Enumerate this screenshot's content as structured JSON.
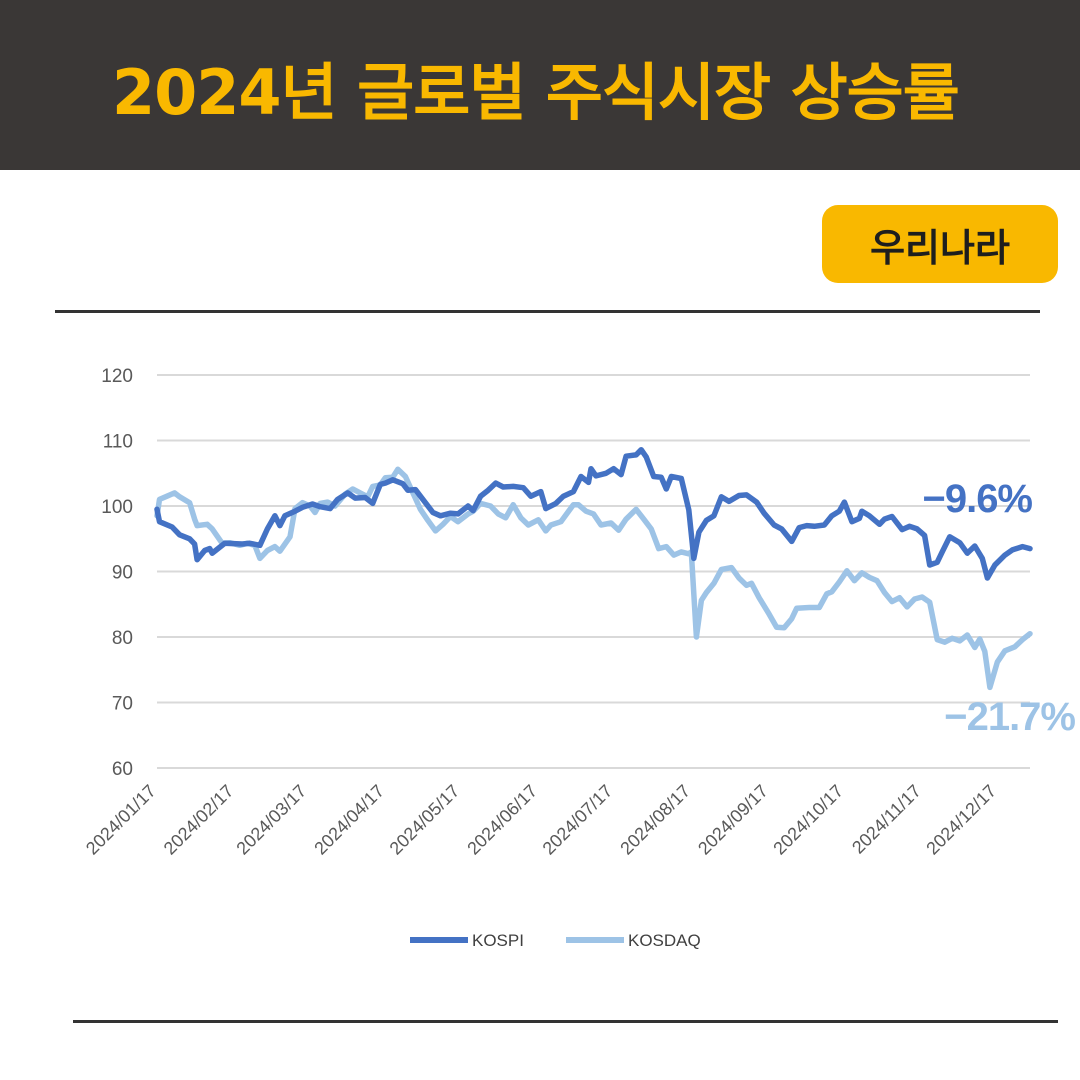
{
  "header": {
    "title": "2024년 글로벌 주식시장 상승률"
  },
  "badge": {
    "label": "우리나라"
  },
  "colors": {
    "header_bg": "#3a3736",
    "accent": "#f9b800",
    "kospi": "#4472c4",
    "kosdaq": "#9dc3e6"
  },
  "chart_data": {
    "type": "line",
    "title": "",
    "xlabel": "",
    "ylabel": "",
    "ylim": [
      60,
      120
    ],
    "yticks": [
      60,
      70,
      80,
      90,
      100,
      110,
      120
    ],
    "x_tick_labels": [
      "2024/01/17",
      "2024/02/17",
      "2024/03/17",
      "2024/04/17",
      "2024/05/17",
      "2024/06/17",
      "2024/07/17",
      "2024/08/17",
      "2024/09/17",
      "2024/10/17",
      "2024/11/17",
      "2024/12/17"
    ],
    "x_range": [
      "2024/01/17",
      "2024/12/30"
    ],
    "grid": true,
    "legend_position": "bottom",
    "series": [
      {
        "name": "KOSPI",
        "color": "#4472c4",
        "end_label": "−9.6%",
        "points": [
          [
            "2024/01/17",
            99.5
          ],
          [
            "2024/01/18",
            97.6
          ],
          [
            "2024/01/23",
            96.8
          ],
          [
            "2024/01/26",
            95.6
          ],
          [
            "2024/01/30",
            95.0
          ],
          [
            "2024/02/01",
            94.2
          ],
          [
            "2024/02/02",
            91.8
          ],
          [
            "2024/02/05",
            93.2
          ],
          [
            "2024/02/07",
            93.5
          ],
          [
            "2024/02/08",
            92.8
          ],
          [
            "2024/02/13",
            94.3
          ],
          [
            "2024/02/20",
            94.2
          ],
          [
            "2024/02/23",
            94.3
          ],
          [
            "2024/02/27",
            94.0
          ],
          [
            "2024/03/01",
            96.5
          ],
          [
            "2024/03/04",
            98.5
          ],
          [
            "2024/03/06",
            97.0
          ],
          [
            "2024/03/08",
            98.5
          ],
          [
            "2024/03/12",
            99.2
          ],
          [
            "2024/03/15",
            99.8
          ],
          [
            "2024/03/19",
            100.3
          ],
          [
            "2024/03/22",
            99.9
          ],
          [
            "2024/03/26",
            99.6
          ],
          [
            "2024/03/29",
            101.0
          ],
          [
            "2024/04/02",
            102.0
          ],
          [
            "2024/04/05",
            101.2
          ],
          [
            "2024/04/09",
            101.3
          ],
          [
            "2024/04/12",
            100.4
          ],
          [
            "2024/04/15",
            103.3
          ],
          [
            "2024/04/17",
            103.5
          ],
          [
            "2024/04/20",
            104.0
          ],
          [
            "2024/04/24",
            103.4
          ],
          [
            "2024/04/26",
            102.4
          ],
          [
            "2024/04/29",
            102.5
          ],
          [
            "2024/05/02",
            101.0
          ],
          [
            "2024/05/06",
            99.0
          ],
          [
            "2024/05/09",
            98.5
          ],
          [
            "2024/05/13",
            98.9
          ],
          [
            "2024/05/16",
            98.8
          ],
          [
            "2024/05/20",
            100.0
          ],
          [
            "2024/05/22",
            99.3
          ],
          [
            "2024/05/25",
            101.5
          ],
          [
            "2024/05/28",
            102.4
          ],
          [
            "2024/05/31",
            103.5
          ],
          [
            "2024/06/03",
            102.9
          ],
          [
            "2024/06/07",
            103.0
          ],
          [
            "2024/06/11",
            102.8
          ],
          [
            "2024/06/14",
            101.5
          ],
          [
            "2024/06/18",
            102.2
          ],
          [
            "2024/06/20",
            99.6
          ],
          [
            "2024/06/24",
            100.4
          ],
          [
            "2024/06/27",
            101.5
          ],
          [
            "2024/07/01",
            102.2
          ],
          [
            "2024/07/04",
            104.5
          ],
          [
            "2024/07/07",
            103.6
          ],
          [
            "2024/07/08",
            105.7
          ],
          [
            "2024/07/10",
            104.6
          ],
          [
            "2024/07/14",
            105.0
          ],
          [
            "2024/07/17",
            105.7
          ],
          [
            "2024/07/20",
            104.8
          ],
          [
            "2024/07/22",
            107.6
          ],
          [
            "2024/07/26",
            107.8
          ],
          [
            "2024/07/28",
            108.6
          ],
          [
            "2024/07/30",
            107.5
          ],
          [
            "2024/08/02",
            104.5
          ],
          [
            "2024/08/05",
            104.4
          ],
          [
            "2024/08/07",
            102.6
          ],
          [
            "2024/08/09",
            104.5
          ],
          [
            "2024/08/13",
            104.2
          ],
          [
            "2024/08/16",
            99.4
          ],
          [
            "2024/08/18",
            92.0
          ],
          [
            "2024/08/20",
            96.0
          ],
          [
            "2024/08/23",
            97.8
          ],
          [
            "2024/08/26",
            98.5
          ],
          [
            "2024/08/29",
            101.4
          ],
          [
            "2024/09/01",
            100.7
          ],
          [
            "2024/09/05",
            101.6
          ],
          [
            "2024/09/08",
            101.7
          ],
          [
            "2024/09/12",
            100.6
          ],
          [
            "2024/09/15",
            98.9
          ],
          [
            "2024/09/19",
            97.1
          ],
          [
            "2024/09/22",
            96.5
          ],
          [
            "2024/09/26",
            94.6
          ],
          [
            "2024/09/29",
            96.7
          ],
          [
            "2024/10/02",
            97.0
          ],
          [
            "2024/10/05",
            96.9
          ],
          [
            "2024/10/09",
            97.1
          ],
          [
            "2024/10/12",
            98.5
          ],
          [
            "2024/10/15",
            99.2
          ],
          [
            "2024/10/17",
            100.6
          ],
          [
            "2024/10/20",
            97.6
          ],
          [
            "2024/10/23",
            98.1
          ],
          [
            "2024/10/24",
            99.2
          ],
          [
            "2024/10/27",
            98.5
          ],
          [
            "2024/10/31",
            97.2
          ],
          [
            "2024/11/02",
            98.0
          ],
          [
            "2024/11/05",
            98.4
          ],
          [
            "2024/11/09",
            96.4
          ],
          [
            "2024/11/12",
            96.9
          ],
          [
            "2024/11/15",
            96.5
          ],
          [
            "2024/11/18",
            95.5
          ],
          [
            "2024/11/20",
            91.0
          ],
          [
            "2024/11/23",
            91.4
          ],
          [
            "2024/11/25",
            93.0
          ],
          [
            "2024/11/28",
            95.3
          ],
          [
            "2024/12/02",
            94.4
          ],
          [
            "2024/12/05",
            92.8
          ],
          [
            "2024/12/08",
            93.9
          ],
          [
            "2024/12/11",
            92.0
          ],
          [
            "2024/12/13",
            89.0
          ],
          [
            "2024/12/16",
            91.0
          ],
          [
            "2024/12/20",
            92.5
          ],
          [
            "2024/12/23",
            93.3
          ],
          [
            "2024/12/27",
            93.8
          ],
          [
            "2024/12/30",
            93.5
          ]
        ]
      },
      {
        "name": "KOSDAQ",
        "color": "#9dc3e6",
        "end_label": "−21.7%",
        "points": [
          [
            "2024/01/17",
            98.5
          ],
          [
            "2024/01/18",
            101.0
          ],
          [
            "2024/01/21",
            101.5
          ],
          [
            "2024/01/24",
            102.0
          ],
          [
            "2024/01/26",
            101.4
          ],
          [
            "2024/01/30",
            100.5
          ],
          [
            "2024/02/01",
            98.0
          ],
          [
            "2024/02/02",
            97.0
          ],
          [
            "2024/02/06",
            97.2
          ],
          [
            "2024/02/08",
            96.5
          ],
          [
            "2024/02/12",
            94.3
          ],
          [
            "2024/02/15",
            94.4
          ],
          [
            "2024/02/19",
            94.0
          ],
          [
            "2024/02/22",
            94.3
          ],
          [
            "2024/02/25",
            94.0
          ],
          [
            "2024/02/27",
            92.0
          ],
          [
            "2024/03/01",
            93.2
          ],
          [
            "2024/03/04",
            93.8
          ],
          [
            "2024/03/06",
            93.1
          ],
          [
            "2024/03/10",
            95.3
          ],
          [
            "2024/03/12",
            99.6
          ],
          [
            "2024/03/15",
            100.5
          ],
          [
            "2024/03/18",
            100.0
          ],
          [
            "2024/03/20",
            99.0
          ],
          [
            "2024/03/22",
            100.4
          ],
          [
            "2024/03/25",
            100.6
          ],
          [
            "2024/03/28",
            100.0
          ],
          [
            "2024/04/01",
            101.8
          ],
          [
            "2024/04/04",
            102.6
          ],
          [
            "2024/04/07",
            102.0
          ],
          [
            "2024/04/10",
            101.4
          ],
          [
            "2024/04/12",
            103.0
          ],
          [
            "2024/04/15",
            103.2
          ],
          [
            "2024/04/17",
            104.3
          ],
          [
            "2024/04/20",
            104.4
          ],
          [
            "2024/04/22",
            105.6
          ],
          [
            "2024/04/25",
            104.5
          ],
          [
            "2024/04/28",
            102.0
          ],
          [
            "2024/05/01",
            99.5
          ],
          [
            "2024/05/04",
            97.8
          ],
          [
            "2024/05/07",
            96.2
          ],
          [
            "2024/05/10",
            97.2
          ],
          [
            "2024/05/13",
            98.4
          ],
          [
            "2024/05/16",
            97.6
          ],
          [
            "2024/05/20",
            98.8
          ],
          [
            "2024/05/22",
            99.2
          ],
          [
            "2024/05/25",
            100.4
          ],
          [
            "2024/05/29",
            100.0
          ],
          [
            "2024/06/01",
            98.8
          ],
          [
            "2024/06/04",
            98.2
          ],
          [
            "2024/06/07",
            100.2
          ],
          [
            "2024/06/10",
            98.2
          ],
          [
            "2024/06/13",
            97.1
          ],
          [
            "2024/06/17",
            97.9
          ],
          [
            "2024/06/20",
            96.2
          ],
          [
            "2024/06/22",
            97.1
          ],
          [
            "2024/06/26",
            97.6
          ],
          [
            "2024/07/01",
            100.2
          ],
          [
            "2024/07/03",
            100.2
          ],
          [
            "2024/07/06",
            99.2
          ],
          [
            "2024/07/09",
            98.8
          ],
          [
            "2024/07/12",
            97.1
          ],
          [
            "2024/07/16",
            97.4
          ],
          [
            "2024/07/19",
            96.3
          ],
          [
            "2024/07/22",
            98.0
          ],
          [
            "2024/07/26",
            99.5
          ],
          [
            "2024/07/29",
            98.0
          ],
          [
            "2024/08/01",
            96.5
          ],
          [
            "2024/08/04",
            93.5
          ],
          [
            "2024/08/07",
            93.8
          ],
          [
            "2024/08/10",
            92.5
          ],
          [
            "2024/08/13",
            93.0
          ],
          [
            "2024/08/16",
            92.7
          ],
          [
            "2024/08/17",
            93.0
          ],
          [
            "2024/08/19",
            80.0
          ],
          [
            "2024/08/21",
            85.6
          ],
          [
            "2024/08/23",
            86.8
          ],
          [
            "2024/08/26",
            88.2
          ],
          [
            "2024/08/29",
            90.3
          ],
          [
            "2024/09/02",
            90.6
          ],
          [
            "2024/09/05",
            89.0
          ],
          [
            "2024/09/08",
            87.9
          ],
          [
            "2024/09/10",
            88.2
          ],
          [
            "2024/09/13",
            86.0
          ],
          [
            "2024/09/17",
            83.5
          ],
          [
            "2024/09/20",
            81.5
          ],
          [
            "2024/09/23",
            81.4
          ],
          [
            "2024/09/26",
            82.8
          ],
          [
            "2024/09/28",
            84.4
          ],
          [
            "2024/10/03",
            84.5
          ],
          [
            "2024/10/07",
            84.5
          ],
          [
            "2024/10/10",
            86.6
          ],
          [
            "2024/10/12",
            86.9
          ],
          [
            "2024/10/15",
            88.4
          ],
          [
            "2024/10/18",
            90.1
          ],
          [
            "2024/10/21",
            88.6
          ],
          [
            "2024/10/24",
            89.8
          ],
          [
            "2024/10/27",
            89.1
          ],
          [
            "2024/10/30",
            88.6
          ],
          [
            "2024/11/02",
            86.8
          ],
          [
            "2024/11/05",
            85.4
          ],
          [
            "2024/11/08",
            86.0
          ],
          [
            "2024/11/11",
            84.6
          ],
          [
            "2024/11/14",
            85.8
          ],
          [
            "2024/11/17",
            86.1
          ],
          [
            "2024/11/20",
            85.3
          ],
          [
            "2024/11/23",
            79.6
          ],
          [
            "2024/11/26",
            79.2
          ],
          [
            "2024/11/29",
            79.8
          ],
          [
            "2024/12/02",
            79.4
          ],
          [
            "2024/12/05",
            80.3
          ],
          [
            "2024/12/08",
            78.4
          ],
          [
            "2024/12/10",
            79.7
          ],
          [
            "2024/12/12",
            77.8
          ],
          [
            "2024/12/14",
            72.3
          ],
          [
            "2024/12/17",
            76.2
          ],
          [
            "2024/12/20",
            77.9
          ],
          [
            "2024/12/24",
            78.5
          ],
          [
            "2024/12/27",
            79.6
          ],
          [
            "2024/12/30",
            80.5
          ]
        ]
      }
    ]
  }
}
